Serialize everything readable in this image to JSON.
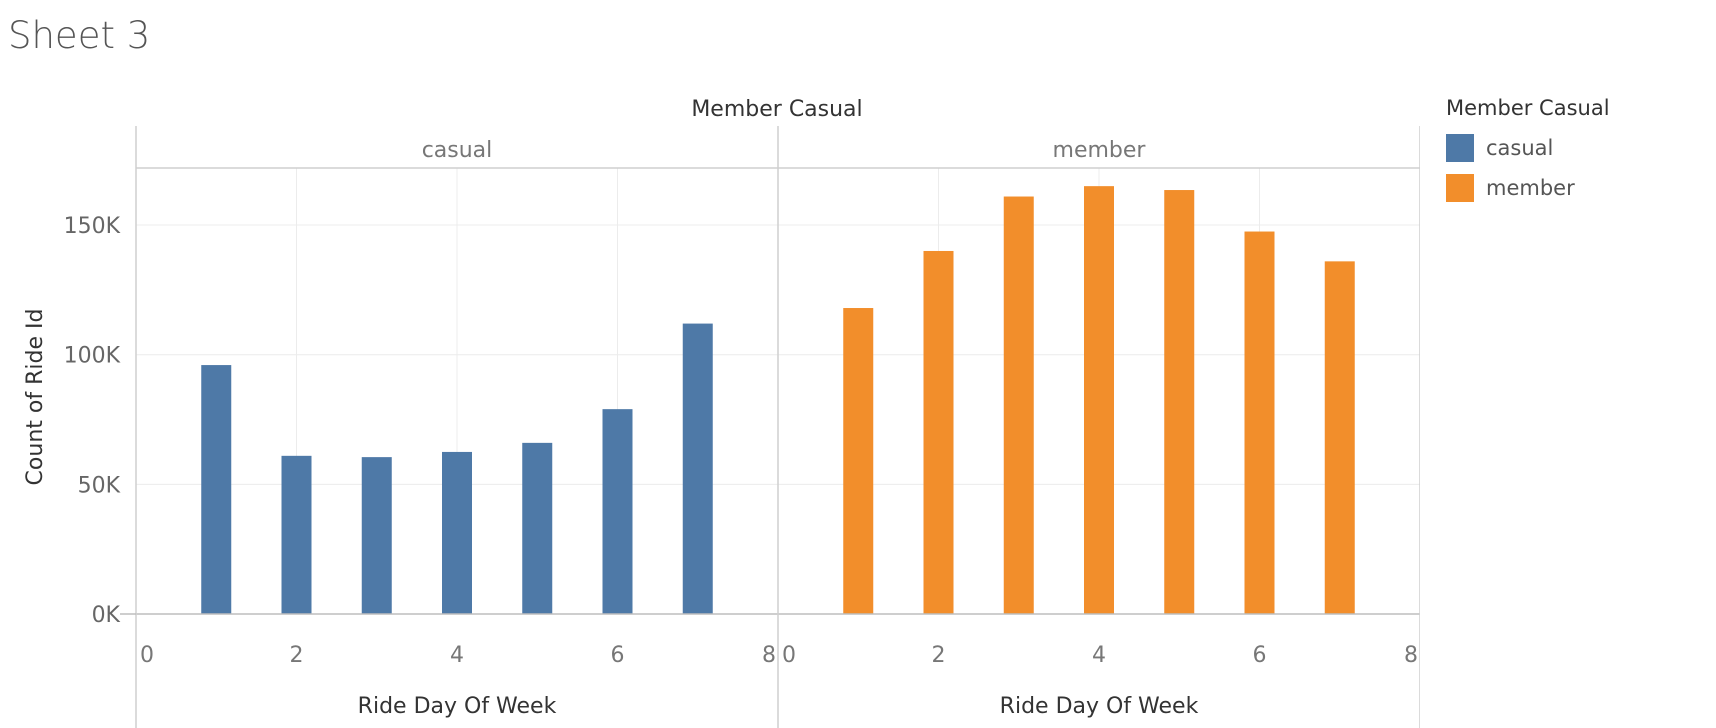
{
  "sheet": {
    "title": "Sheet 3"
  },
  "chart_data": {
    "type": "bar",
    "column_header": "Member Casual",
    "ylabel": "Count of Ride Id",
    "xlabel": "Ride Day Of Week",
    "y_ticks": [
      {
        "value": 0,
        "label": "0K"
      },
      {
        "value": 50000,
        "label": "50K"
      },
      {
        "value": 100000,
        "label": "100K"
      },
      {
        "value": 150000,
        "label": "150K"
      }
    ],
    "ylim": [
      0,
      172000
    ],
    "x_ticks": [
      {
        "value": 0,
        "label": "0"
      },
      {
        "value": 2,
        "label": "2"
      },
      {
        "value": 4,
        "label": "4"
      },
      {
        "value": 6,
        "label": "6"
      },
      {
        "value": 8,
        "label": "8"
      }
    ],
    "xlim": [
      0,
      8
    ],
    "grid": true,
    "panels": [
      {
        "name": "casual",
        "color": "#4e79a7",
        "x": [
          1,
          2,
          3,
          4,
          5,
          6,
          7
        ],
        "values": [
          96000,
          61000,
          60500,
          62500,
          66000,
          79000,
          112000
        ]
      },
      {
        "name": "member",
        "color": "#f28e2b",
        "x": [
          1,
          2,
          3,
          4,
          5,
          6,
          7
        ],
        "values": [
          118000,
          140000,
          161000,
          165000,
          163500,
          147500,
          136000
        ]
      }
    ]
  },
  "legend": {
    "title": "Member Casual",
    "items": [
      {
        "label": "casual",
        "color": "#4e79a7"
      },
      {
        "label": "member",
        "color": "#f28e2b"
      }
    ]
  }
}
